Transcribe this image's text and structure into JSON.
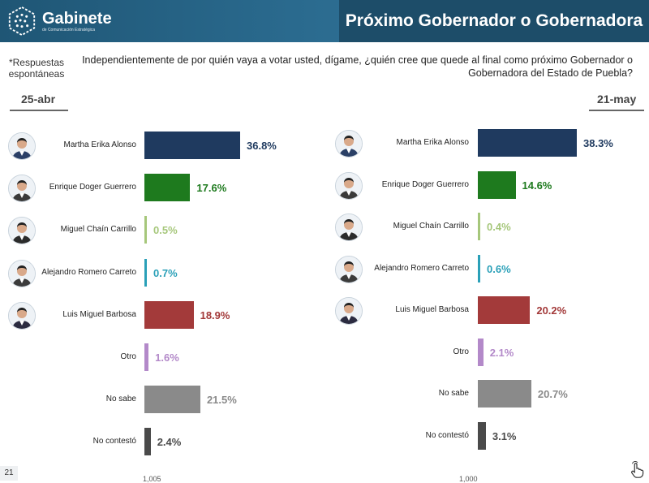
{
  "header": {
    "logo_name": "Gabinete",
    "logo_tagline": "de Comunicación Estratégica",
    "title": "Próximo Gobernador o Gobernadora"
  },
  "note": "*Respuestas espontáneas",
  "question": "Independientemente de por quién vaya a votar usted, dígame, ¿quién cree que quede al final como próximo Gobernador o Gobernadora del Estado de Puebla?",
  "page_number": "21",
  "footer": {
    "left_n": "1,005",
    "right_n": "1,000"
  },
  "chart_data": [
    {
      "type": "bar",
      "title": "25-abr",
      "categories": [
        "Martha Erika Alonso",
        "Enrique Doger Guerrero",
        "Miguel Chaín Carrillo",
        "Alejandro Romero Carreto",
        "Luis Miguel Barbosa",
        "Otro",
        "No sabe",
        "No contestó"
      ],
      "values": [
        36.8,
        17.6,
        0.5,
        0.7,
        18.9,
        1.6,
        21.5,
        2.4
      ],
      "value_labels": [
        "36.8%",
        "17.6%",
        "0.5%",
        "0.7%",
        "18.9%",
        "1.6%",
        "21.5%",
        "2.4%"
      ],
      "colors": [
        "#1f3a5f",
        "#1e7a1e",
        "#a6c77b",
        "#2aa0b8",
        "#a33a3a",
        "#b389c9",
        "#8a8a8a",
        "#4a4a4a"
      ],
      "orientation": "horizontal"
    },
    {
      "type": "bar",
      "title": "21-may",
      "categories": [
        "Martha Erika Alonso",
        "Enrique Doger Guerrero",
        "Miguel Chaín Carrillo",
        "Alejandro Romero Carreto",
        "Luis Miguel Barbosa",
        "Otro",
        "No sabe",
        "No contestó"
      ],
      "values": [
        38.3,
        14.6,
        0.4,
        0.6,
        20.2,
        2.1,
        20.7,
        3.1
      ],
      "value_labels": [
        "38.3%",
        "14.6%",
        "0.4%",
        "0.6%",
        "20.2%",
        "2.1%",
        "20.7%",
        "3.1%"
      ],
      "colors": [
        "#1f3a5f",
        "#1e7a1e",
        "#a6c77b",
        "#2aa0b8",
        "#a33a3a",
        "#b389c9",
        "#8a8a8a",
        "#4a4a4a"
      ],
      "orientation": "horizontal"
    }
  ],
  "icons": {
    "candidate_photo": "person-avatar-icon",
    "logo": "hexagon-dots-logo-icon",
    "click": "hand-pointer-icon"
  }
}
